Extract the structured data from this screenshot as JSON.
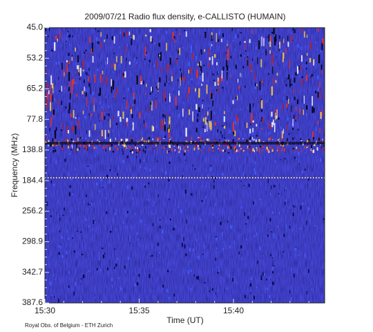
{
  "chart_data": {
    "type": "spectrogram",
    "title": "2009/07/21  Radio flux density, e-CALLISTO (HUMAIN)",
    "x_label": "Time (UT)",
    "y_label": "Frequency (MHz)",
    "footer": "Royal Obs. of Belgium - ETH Zurich",
    "xticks": [
      "15:30",
      "15:35",
      "15:40"
    ],
    "yticks": [
      {
        "value": 45,
        "label": "45.0"
      },
      {
        "value": 53.2,
        "label": "53.2"
      },
      {
        "value": 65.2,
        "label": "65.2"
      },
      {
        "value": 77.8,
        "label": "77.8"
      },
      {
        "value": 138.8,
        "label": "138.8"
      },
      {
        "value": 184.4,
        "label": "184.4"
      },
      {
        "value": 256.2,
        "label": "256.2"
      },
      {
        "value": 298.9,
        "label": "298.9"
      },
      {
        "value": 342.7,
        "label": "342.7"
      },
      {
        "value": 387.6,
        "label": "387.6"
      }
    ]
  }
}
